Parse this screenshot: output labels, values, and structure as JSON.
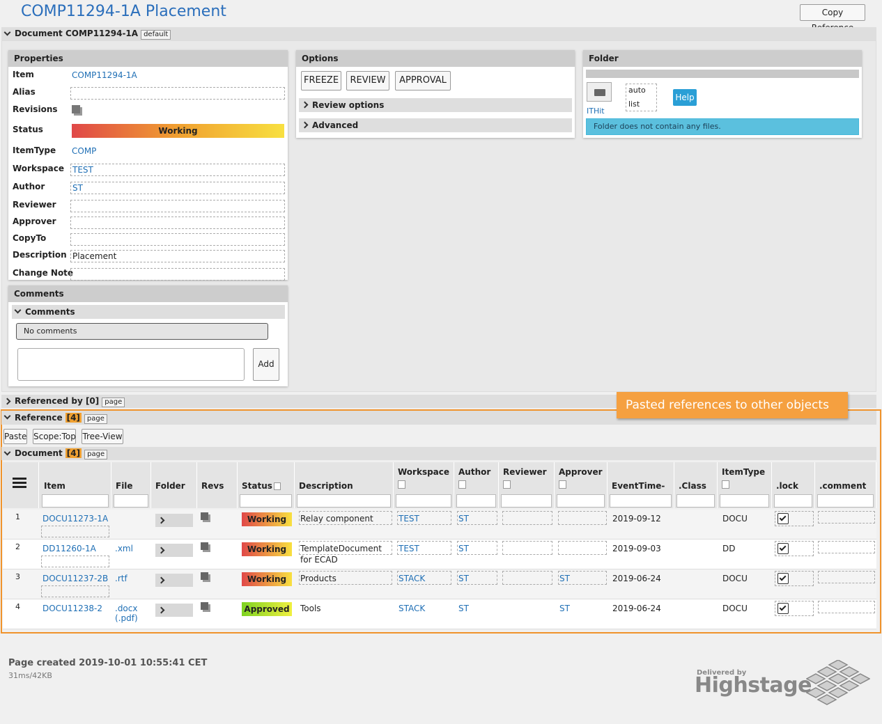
{
  "header": {
    "title": "COMP11294-1A Placement",
    "copy_button": "Copy Reference"
  },
  "document_section": {
    "label": "Document COMP11294-1A",
    "badge": "default"
  },
  "properties": {
    "title": "Properties",
    "status_colors": [
      "#e04848",
      "#f0a030",
      "#f8e040"
    ],
    "fields": [
      {
        "label": "Item",
        "value": "COMP11294-1A"
      },
      {
        "label": "Alias"
      },
      {
        "label": "Revisions"
      },
      {
        "label": "Status",
        "value": "Working"
      },
      {
        "label": "ItemType",
        "value": "COMP"
      },
      {
        "label": "Workspace",
        "value": "TEST"
      },
      {
        "label": "Author",
        "value": "ST"
      },
      {
        "label": "Reviewer"
      },
      {
        "label": "Approver"
      },
      {
        "label": "CopyTo"
      },
      {
        "label": "Description",
        "value": "Placement"
      },
      {
        "label": "Change Note"
      }
    ]
  },
  "options": {
    "title": "Options",
    "buttons": [
      "FREEZE",
      "REVIEW",
      "APPROVAL"
    ],
    "sections": [
      "Review options",
      "Advanced"
    ]
  },
  "folder": {
    "title": "Folder",
    "link": "ITHit",
    "modes": [
      "auto",
      "list"
    ],
    "help": "Help",
    "message": "Folder does not contain any files."
  },
  "comments": {
    "title": "Comments",
    "subtitle": "Comments",
    "empty": "No comments",
    "add": "Add"
  },
  "referenced_by": {
    "label": "Referenced by [0]",
    "badge": "page"
  },
  "reference": {
    "label": "Reference",
    "count": "[4]",
    "badge": "page",
    "buttons": [
      "Paste",
      "Scope:Top",
      "Tree-View"
    ],
    "annotation": "Pasted references to other objects"
  },
  "document_table": {
    "label": "Document",
    "count": "[4]",
    "badge": "page",
    "columns": [
      "Item",
      "File",
      "Folder",
      "Revs",
      "Status",
      "Description",
      "Workspace",
      "Author",
      "Reviewer",
      "Approver",
      "EventTime-",
      ".Class",
      "ItemType",
      ".lock",
      ".comment"
    ],
    "rows": [
      {
        "number": "1",
        "item": "DOCU11273-1A",
        "status": "Working",
        "status_colors": [
          "#e04848",
          "#f8e040"
        ],
        "description": "Relay component",
        "workspace": "TEST",
        "author": "ST",
        "event_time": "2019-09-12",
        "item_type": "DOCU"
      },
      {
        "number": "2",
        "item": "DD11260-1A",
        "file": ".xml",
        "status": "Working",
        "status_colors": [
          "#e04848",
          "#f8e040"
        ],
        "description": "TemplateDocument for ECAD",
        "workspace": "TEST",
        "author": "ST",
        "event_time": "2019-09-03",
        "item_type": "DD"
      },
      {
        "number": "3",
        "item": "DOCU11237-2B",
        "file": ".rtf",
        "status": "Working",
        "status_colors": [
          "#e04848",
          "#f8e040"
        ],
        "description": "Products",
        "workspace": "STACK",
        "author": "ST",
        "approver": "ST",
        "event_time": "2019-06-24",
        "item_type": "DOCU"
      },
      {
        "number": "4",
        "item": "DOCU11238-2",
        "file": ".docx (.pdf)",
        "status": "Approved",
        "status_colors": [
          "#7ed321",
          "#f0f040"
        ],
        "description": "Tools",
        "workspace": "STACK",
        "author": "ST",
        "approver": "ST",
        "event_time": "2019-06-24",
        "item_type": "DOCU"
      }
    ]
  },
  "footer": {
    "created": "Page created 2019-10-01 10:55:41 CET",
    "stats": "31ms/42KB",
    "delivered_by": "Delivered by",
    "brand": "Highstage"
  }
}
